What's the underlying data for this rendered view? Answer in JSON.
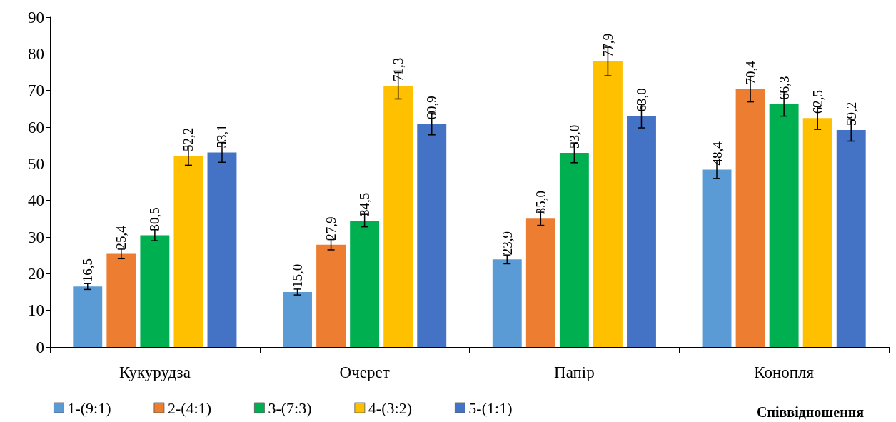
{
  "chart_data": {
    "type": "bar",
    "legend_title": "Співвідношення",
    "categories": [
      "Кукурудза",
      "Очерет",
      "Папір",
      "Конопля"
    ],
    "series": [
      {
        "name": "1-(9:1)",
        "color": "#5b9bd5",
        "values": [
          16.5,
          15.0,
          23.9,
          48.4
        ],
        "value_labels": [
          "16,5",
          "15,0",
          "23,9",
          "48,4"
        ],
        "errors": [
          0.8,
          0.8,
          1.2,
          2.4
        ]
      },
      {
        "name": "2-(4:1)",
        "color": "#ed7d31",
        "values": [
          25.4,
          27.9,
          35.0,
          70.4
        ],
        "value_labels": [
          "25,4",
          "27,9",
          "35,0",
          "70,4"
        ],
        "errors": [
          1.3,
          1.4,
          1.8,
          3.5
        ]
      },
      {
        "name": "3-(7:3)",
        "color": "#00b050",
        "values": [
          30.5,
          34.5,
          53.0,
          66.3
        ],
        "value_labels": [
          "30,5",
          "34,5",
          "53,0",
          "66,3"
        ],
        "errors": [
          1.5,
          1.7,
          2.7,
          3.3
        ]
      },
      {
        "name": "4-(3:2)",
        "color": "#ffc000",
        "values": [
          52.2,
          71.3,
          77.9,
          62.5
        ],
        "value_labels": [
          "52,2",
          "71,3",
          "77,9",
          "62,5"
        ],
        "errors": [
          2.6,
          3.6,
          3.9,
          3.1
        ]
      },
      {
        "name": "5-(1:1)",
        "color": "#4472c4",
        "values": [
          53.1,
          60.9,
          63.0,
          59.2
        ],
        "value_labels": [
          "53,1",
          "60,9",
          "63,0",
          "59,2"
        ],
        "errors": [
          2.7,
          3.0,
          3.2,
          3.0
        ]
      }
    ],
    "ylim": [
      0,
      90
    ],
    "yticks": [
      0,
      10,
      20,
      30,
      40,
      50,
      60,
      70,
      80,
      90
    ],
    "grid": false,
    "legend": "bottom"
  }
}
